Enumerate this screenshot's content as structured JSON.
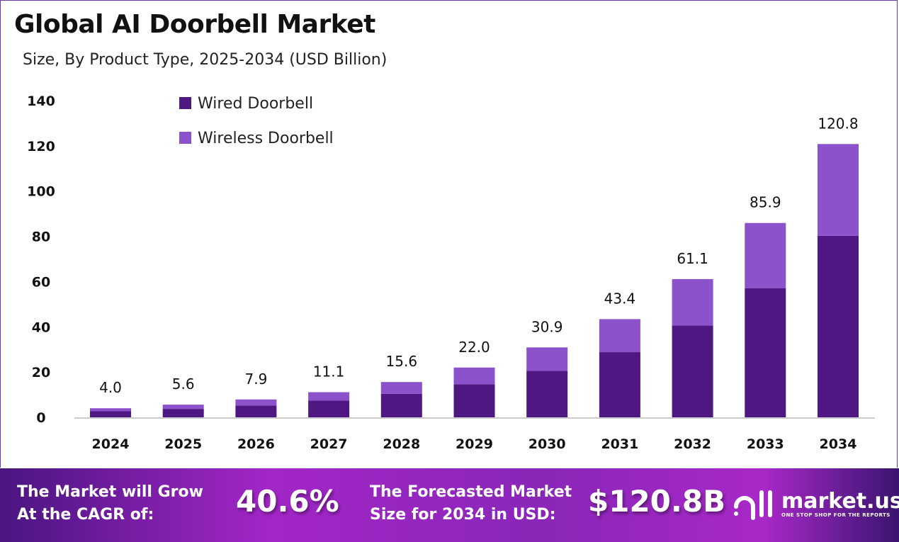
{
  "chart_data": {
    "type": "bar",
    "stacked": true,
    "title": "Global AI Doorbell Market",
    "subtitle": "Size, By Product Type, 2025-2034 (USD Billion)",
    "categories": [
      "2024",
      "2025",
      "2026",
      "2027",
      "2028",
      "2029",
      "2030",
      "2031",
      "2032",
      "2033",
      "2034"
    ],
    "totals": [
      4.0,
      5.6,
      7.9,
      11.1,
      15.6,
      22.0,
      30.9,
      43.4,
      61.1,
      85.9,
      120.8
    ],
    "total_labels": [
      "4.0",
      "5.6",
      "7.9",
      "11.1",
      "15.6",
      "22.0",
      "30.9",
      "43.4",
      "61.1",
      "85.9",
      "120.8"
    ],
    "series": [
      {
        "name": "Wired Doorbell",
        "color": "#4e1781",
        "values": [
          2.66,
          3.72,
          5.25,
          7.38,
          10.37,
          14.6,
          20.5,
          28.8,
          40.6,
          57.0,
          80.2
        ]
      },
      {
        "name": "Wireless Doorbell",
        "color": "#8c52cc",
        "values": [
          1.34,
          1.88,
          2.65,
          3.72,
          5.23,
          7.4,
          10.4,
          14.6,
          20.5,
          28.9,
          40.6
        ]
      }
    ],
    "yticks": [
      "0",
      "20",
      "40",
      "60",
      "80",
      "100",
      "120",
      "140"
    ],
    "ylim": [
      0,
      140
    ],
    "grid": false,
    "legend": "top-left"
  },
  "footer": {
    "cagr_label_1": "The Market will Grow",
    "cagr_label_2": "At the CAGR of:",
    "cagr_value": "40.6%",
    "forecast_label_1": "The Forecasted Market",
    "forecast_label_2": "Size for 2034 in USD:",
    "forecast_value": "$120.8B",
    "logo_name": "market.us",
    "logo_tagline": "ONE STOP SHOP FOR THE REPORTS"
  }
}
